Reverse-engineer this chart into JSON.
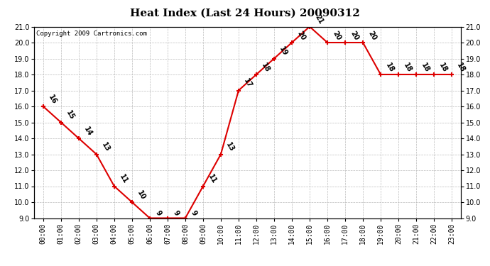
{
  "title": "Heat Index (Last 24 Hours) 20090312",
  "copyright": "Copyright 2009 Cartronics.com",
  "hours": [
    0,
    1,
    2,
    3,
    4,
    5,
    6,
    7,
    8,
    9,
    10,
    11,
    12,
    13,
    14,
    15,
    16,
    17,
    18,
    19,
    20,
    21,
    22,
    23
  ],
  "values": [
    16,
    15,
    14,
    13,
    11,
    10,
    9,
    9,
    9,
    11,
    13,
    17,
    18,
    19,
    20,
    21,
    20,
    20,
    20,
    18,
    18,
    18,
    18,
    18
  ],
  "xlabels": [
    "00:00",
    "01:00",
    "02:00",
    "03:00",
    "04:00",
    "05:00",
    "06:00",
    "07:00",
    "08:00",
    "09:00",
    "10:00",
    "11:00",
    "12:00",
    "13:00",
    "14:00",
    "15:00",
    "16:00",
    "17:00",
    "18:00",
    "19:00",
    "20:00",
    "21:00",
    "22:00",
    "23:00"
  ],
  "ylim": [
    9.0,
    21.0
  ],
  "yticks": [
    9.0,
    10.0,
    11.0,
    12.0,
    13.0,
    14.0,
    15.0,
    16.0,
    17.0,
    18.0,
    19.0,
    20.0,
    21.0
  ],
  "line_color": "#dd0000",
  "marker_color": "#dd0000",
  "grid_color": "#bbbbbb",
  "bg_color": "#ffffff",
  "title_fontsize": 11,
  "tick_fontsize": 7,
  "label_fontsize": 7,
  "copyright_fontsize": 6.5
}
